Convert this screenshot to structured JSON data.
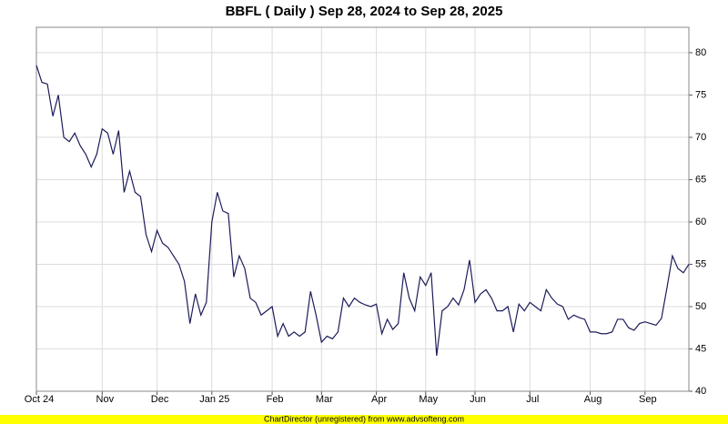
{
  "chart_data": {
    "type": "line",
    "title": "BBFL ( Daily ) Sep 28, 2024 to Sep 28, 2025",
    "footer": "ChartDirector (unregistered) from www.advsofteng.com",
    "color": "#1c1c5a",
    "grid": true,
    "ylim": [
      40,
      83
    ],
    "yticks": [
      40,
      45,
      50,
      55,
      60,
      65,
      70,
      75,
      80
    ],
    "categories": [
      "Oct 24",
      null,
      null,
      null,
      null,
      null,
      null,
      null,
      null,
      null,
      null,
      null,
      "Nov",
      null,
      null,
      null,
      null,
      null,
      null,
      null,
      null,
      null,
      "Dec",
      null,
      null,
      null,
      null,
      null,
      null,
      null,
      null,
      null,
      "Jan 25",
      null,
      null,
      null,
      null,
      null,
      null,
      null,
      null,
      null,
      null,
      "Feb",
      null,
      null,
      null,
      null,
      null,
      null,
      null,
      null,
      "Mar",
      null,
      null,
      null,
      null,
      null,
      null,
      null,
      null,
      null,
      "Apr",
      null,
      null,
      null,
      null,
      null,
      null,
      null,
      null,
      "May",
      null,
      null,
      null,
      null,
      null,
      null,
      null,
      null,
      "Jun",
      null,
      null,
      null,
      null,
      null,
      null,
      null,
      null,
      null,
      "Jul",
      null,
      null,
      null,
      null,
      null,
      null,
      null,
      null,
      null,
      null,
      "Aug",
      null,
      null,
      null,
      null,
      null,
      null,
      null,
      null,
      null,
      "Sep",
      null,
      null,
      null,
      null,
      null,
      null,
      null,
      null
    ],
    "values": [
      78.5,
      76.5,
      76.3,
      72.5,
      75,
      70,
      69.5,
      70.5,
      69,
      68,
      66.5,
      68,
      71,
      70.5,
      68,
      70.8,
      63.5,
      66,
      63.5,
      63,
      58.5,
      56.5,
      59,
      57.5,
      57,
      56,
      55,
      53,
      48,
      51.5,
      49,
      50.5,
      60,
      63.5,
      61.3,
      61,
      53.5,
      56,
      54.5,
      51,
      50.5,
      49,
      49.5,
      50,
      46.5,
      48,
      46.5,
      47,
      46.5,
      47,
      51.8,
      49,
      45.8,
      46.5,
      46.2,
      47,
      51,
      50,
      51,
      50.5,
      50.2,
      50,
      50.3,
      46.8,
      48.5,
      47.3,
      48,
      54,
      51,
      49.5,
      53.5,
      52.5,
      54,
      44.2,
      49.5,
      50,
      51,
      50.2,
      52,
      55.5,
      50.5,
      51.5,
      52,
      51,
      49.5,
      49.5,
      50,
      47,
      50.3,
      49.5,
      50.5,
      50,
      49.5,
      52,
      51,
      50.3,
      50,
      48.5,
      49,
      48.7,
      48.5,
      47,
      47,
      46.8,
      46.8,
      47,
      48.5,
      48.5,
      47.5,
      47.2,
      48,
      48.2,
      48,
      47.8,
      48.6,
      52.2,
      56,
      54.5,
      54,
      55
    ]
  }
}
